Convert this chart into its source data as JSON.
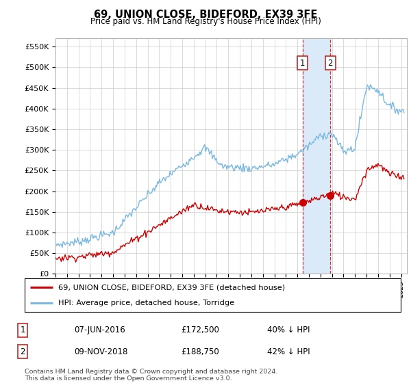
{
  "title": "69, UNION CLOSE, BIDEFORD, EX39 3FE",
  "subtitle": "Price paid vs. HM Land Registry's House Price Index (HPI)",
  "ylabel_ticks": [
    "£0",
    "£50K",
    "£100K",
    "£150K",
    "£200K",
    "£250K",
    "£300K",
    "£350K",
    "£400K",
    "£450K",
    "£500K",
    "£550K"
  ],
  "ytick_values": [
    0,
    50000,
    100000,
    150000,
    200000,
    250000,
    300000,
    350000,
    400000,
    450000,
    500000,
    550000
  ],
  "ylim": [
    0,
    570000
  ],
  "xlim_start": 1995.0,
  "xlim_end": 2025.5,
  "sale1_date": 2016.44,
  "sale1_price": 172500,
  "sale2_date": 2018.86,
  "sale2_price": 188750,
  "legend_line1": "69, UNION CLOSE, BIDEFORD, EX39 3FE (detached house)",
  "legend_line2": "HPI: Average price, detached house, Torridge",
  "sale1_info_cols": [
    "07-JUN-2016",
    "£172,500",
    "40% ↓ HPI"
  ],
  "sale2_info_cols": [
    "09-NOV-2018",
    "£188,750",
    "42% ↓ HPI"
  ],
  "footnote": "Contains HM Land Registry data © Crown copyright and database right 2024.\nThis data is licensed under the Open Government Licence v3.0.",
  "hpi_color": "#7ab8e0",
  "sale_color": "#cc0000",
  "shade_color": "#daeaf8",
  "background_color": "#ffffff",
  "grid_color": "#cccccc",
  "box_edge_color": "#cc2222"
}
